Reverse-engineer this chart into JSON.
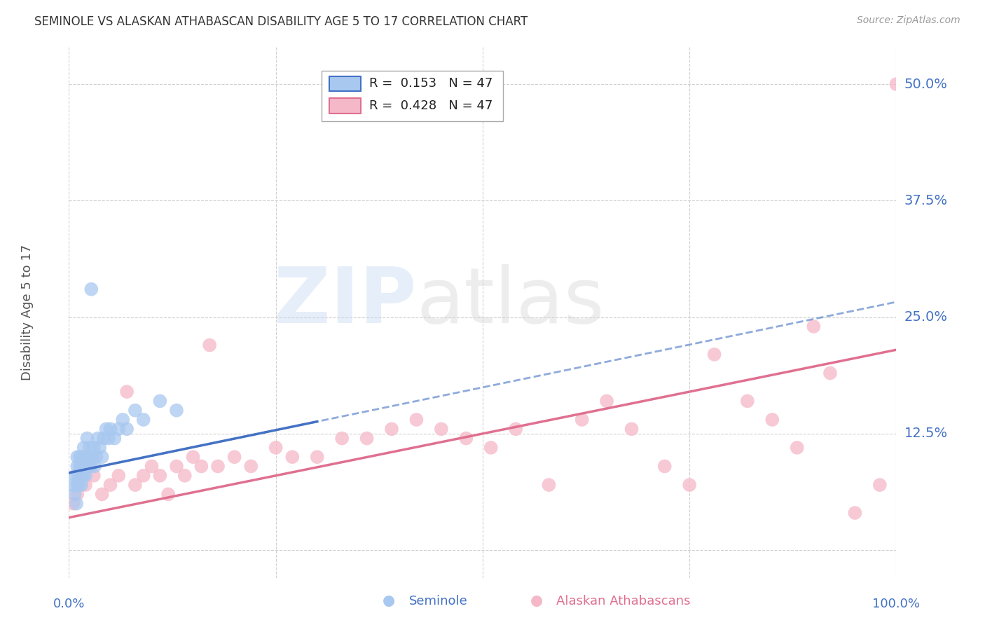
{
  "title": "SEMINOLE VS ALASKAN ATHABASCAN DISABILITY AGE 5 TO 17 CORRELATION CHART",
  "source": "Source: ZipAtlas.com",
  "ylabel": "Disability Age 5 to 17",
  "xlim": [
    0.0,
    1.0
  ],
  "ylim": [
    -0.03,
    0.54
  ],
  "yticks": [
    0.0,
    0.125,
    0.25,
    0.375,
    0.5
  ],
  "ytick_labels": [
    "",
    "12.5%",
    "25.0%",
    "37.5%",
    "50.0%"
  ],
  "seminole_R": 0.153,
  "seminole_N": 47,
  "athabascan_R": 0.428,
  "athabascan_N": 47,
  "seminole_color": "#a8c8f0",
  "athabascan_color": "#f5b8c8",
  "seminole_line_color": "#4472c4",
  "athabascan_line_color": "#e07090",
  "background_color": "#ffffff",
  "grid_color": "#d0d0d0",
  "label_color": "#4472c4",
  "seminole_x": [
    0.005,
    0.007,
    0.008,
    0.009,
    0.01,
    0.01,
    0.01,
    0.011,
    0.012,
    0.013,
    0.013,
    0.014,
    0.015,
    0.015,
    0.016,
    0.017,
    0.018,
    0.018,
    0.019,
    0.02,
    0.021,
    0.022,
    0.022,
    0.023,
    0.024,
    0.025,
    0.026,
    0.027,
    0.028,
    0.03,
    0.031,
    0.033,
    0.035,
    0.037,
    0.04,
    0.042,
    0.045,
    0.048,
    0.05,
    0.055,
    0.06,
    0.065,
    0.07,
    0.08,
    0.09,
    0.11,
    0.13
  ],
  "seminole_y": [
    0.07,
    0.06,
    0.08,
    0.05,
    0.07,
    0.09,
    0.1,
    0.08,
    0.07,
    0.09,
    0.1,
    0.08,
    0.07,
    0.09,
    0.1,
    0.08,
    0.09,
    0.11,
    0.1,
    0.08,
    0.09,
    0.1,
    0.12,
    0.09,
    0.1,
    0.11,
    0.09,
    0.28,
    0.1,
    0.11,
    0.09,
    0.1,
    0.12,
    0.11,
    0.1,
    0.12,
    0.13,
    0.12,
    0.13,
    0.12,
    0.13,
    0.14,
    0.13,
    0.15,
    0.14,
    0.16,
    0.15
  ],
  "athabascan_x": [
    0.005,
    0.01,
    0.02,
    0.03,
    0.04,
    0.05,
    0.06,
    0.07,
    0.08,
    0.09,
    0.1,
    0.11,
    0.12,
    0.13,
    0.14,
    0.15,
    0.16,
    0.17,
    0.18,
    0.2,
    0.22,
    0.25,
    0.27,
    0.3,
    0.33,
    0.36,
    0.39,
    0.42,
    0.45,
    0.48,
    0.51,
    0.54,
    0.58,
    0.62,
    0.65,
    0.68,
    0.72,
    0.75,
    0.78,
    0.82,
    0.85,
    0.88,
    0.9,
    0.92,
    0.95,
    0.98,
    1.0
  ],
  "athabascan_y": [
    0.05,
    0.06,
    0.07,
    0.08,
    0.06,
    0.07,
    0.08,
    0.17,
    0.07,
    0.08,
    0.09,
    0.08,
    0.06,
    0.09,
    0.08,
    0.1,
    0.09,
    0.22,
    0.09,
    0.1,
    0.09,
    0.11,
    0.1,
    0.1,
    0.12,
    0.12,
    0.13,
    0.14,
    0.13,
    0.12,
    0.11,
    0.13,
    0.07,
    0.14,
    0.16,
    0.13,
    0.09,
    0.07,
    0.21,
    0.16,
    0.14,
    0.11,
    0.24,
    0.19,
    0.04,
    0.07,
    0.5
  ],
  "sem_line_x0": 0.0,
  "sem_line_x1": 0.3,
  "sem_line_y0": 0.083,
  "sem_line_y1": 0.138,
  "ath_line_x0": 0.0,
  "ath_line_x1": 1.0,
  "ath_line_y0": 0.035,
  "ath_line_y1": 0.215
}
